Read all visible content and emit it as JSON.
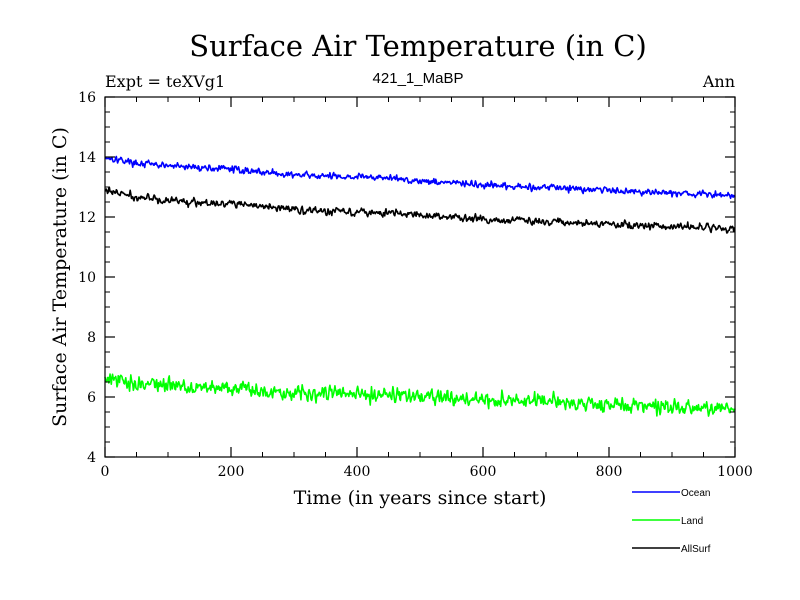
{
  "chart_data": {
    "type": "line",
    "title": "Surface Air Temperature (in C)",
    "subtitle": "421_1_MaBP",
    "left_note": "Expt = teXVg1",
    "right_note": "Ann",
    "xlabel": "Time (in years since start)",
    "ylabel": "Surface Air Temperature (in C)",
    "xlim": [
      0,
      1000
    ],
    "ylim": [
      4,
      16
    ],
    "x_ticks": [
      0,
      200,
      400,
      600,
      800,
      1000
    ],
    "y_ticks": [
      4,
      6,
      8,
      10,
      12,
      14,
      16
    ],
    "x_minor_step": 50,
    "y_minor_step": 0.5,
    "grid": false,
    "legend_position": "bottom-right",
    "series": [
      {
        "name": "Ocean",
        "color": "#0000ff",
        "x": [
          0,
          50,
          100,
          150,
          200,
          250,
          300,
          350,
          400,
          450,
          500,
          550,
          600,
          650,
          700,
          750,
          800,
          850,
          900,
          950,
          1000
        ],
        "values": [
          14.0,
          13.8,
          13.7,
          13.65,
          13.6,
          13.5,
          13.4,
          13.35,
          13.35,
          13.3,
          13.2,
          13.15,
          13.05,
          13.0,
          13.0,
          12.95,
          12.9,
          12.85,
          12.8,
          12.75,
          12.7
        ],
        "noise": 0.14
      },
      {
        "name": "Land",
        "color": "#00ff00",
        "x": [
          0,
          50,
          100,
          150,
          200,
          250,
          300,
          350,
          400,
          450,
          500,
          550,
          600,
          650,
          700,
          750,
          800,
          850,
          900,
          950,
          1000
        ],
        "values": [
          6.6,
          6.45,
          6.4,
          6.35,
          6.3,
          6.2,
          6.15,
          6.15,
          6.1,
          6.1,
          6.0,
          5.95,
          5.9,
          5.85,
          5.85,
          5.8,
          5.75,
          5.7,
          5.65,
          5.6,
          5.6
        ],
        "noise": 0.32
      },
      {
        "name": "AllSurf",
        "color": "#000000",
        "x": [
          0,
          50,
          100,
          150,
          200,
          250,
          300,
          350,
          400,
          450,
          500,
          550,
          600,
          650,
          700,
          750,
          800,
          850,
          900,
          950,
          1000
        ],
        "values": [
          12.9,
          12.65,
          12.55,
          12.5,
          12.45,
          12.35,
          12.25,
          12.2,
          12.2,
          12.15,
          12.05,
          12.0,
          11.9,
          11.9,
          11.85,
          11.8,
          11.75,
          11.7,
          11.7,
          11.65,
          11.6
        ],
        "noise": 0.16
      }
    ]
  }
}
